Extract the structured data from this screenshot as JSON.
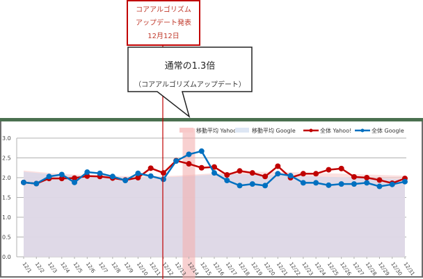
{
  "annotation": {
    "box_lines": [
      "コアアルゴリズム",
      "アップデート発表",
      "12月12日"
    ],
    "bubble_title": "通常の1.3倍",
    "bubble_subtitle": "（コアアルゴリズムアップデート）"
  },
  "legend": [
    {
      "label": "移動平均 Yahoo!",
      "color": "#f8c8c8",
      "kind": "area"
    },
    {
      "label": "移動平均 Google",
      "color": "#dde6f4",
      "kind": "area"
    },
    {
      "label": "全体 Yahoo!",
      "color": "#c00000",
      "kind": "line"
    },
    {
      "label": "全体 Google",
      "color": "#0070c0",
      "kind": "line"
    }
  ],
  "colors": {
    "yahoo": "#c00000",
    "google": "#0070c0",
    "ma_yahoo": "#f8cccc",
    "ma_google": "#dcd8e8",
    "highlight": "#f4b0b0",
    "event_line": "#c00000",
    "grid": "#b0b0b0"
  },
  "chart_data": {
    "type": "line",
    "title": "",
    "xlabel": "",
    "ylabel": "",
    "ylim": [
      0,
      3.0
    ],
    "yticks": [
      "0.0",
      "0.5",
      "1.0",
      "1.5",
      "2.0",
      "2.5",
      "3.0"
    ],
    "grid": true,
    "legend_position": "top",
    "categories": [
      "12/1",
      "12/2",
      "12/3",
      "12/4",
      "12/5",
      "12/6",
      "12/7",
      "12/8",
      "12/9",
      "12/10",
      "12/11",
      "12/12",
      "12/13",
      "12/14",
      "12/15",
      "12/16",
      "12/17",
      "12/18",
      "12/19",
      "12/20",
      "12/21",
      "12/22",
      "12/23",
      "12/24",
      "12/25",
      "12/26",
      "12/27",
      "12/28",
      "12/29",
      "12/30",
      "12/31"
    ],
    "series": [
      {
        "name": "全体 Yahoo!",
        "type": "line",
        "values": [
          1.88,
          1.85,
          1.98,
          1.98,
          1.99,
          2.04,
          2.03,
          1.99,
          1.94,
          2.0,
          2.24,
          2.12,
          2.43,
          2.35,
          2.25,
          2.27,
          2.07,
          2.17,
          2.12,
          2.03,
          2.29,
          2.0,
          2.1,
          2.1,
          2.2,
          2.23,
          2.02,
          2.0,
          1.94,
          1.86,
          1.98
        ]
      },
      {
        "name": "全体 Google",
        "type": "line",
        "values": [
          1.88,
          1.85,
          2.03,
          2.08,
          1.88,
          2.14,
          2.11,
          2.03,
          1.93,
          2.11,
          2.04,
          1.96,
          2.42,
          2.59,
          2.67,
          2.12,
          1.93,
          1.8,
          1.84,
          1.8,
          2.1,
          2.05,
          1.87,
          1.87,
          1.81,
          1.84,
          1.84,
          1.87,
          1.78,
          1.83,
          1.9
        ]
      },
      {
        "name": "移動平均 Yahoo!",
        "type": "area",
        "values": [
          2.18,
          2.15,
          2.12,
          2.1,
          2.08,
          2.07,
          2.06,
          2.05,
          2.04,
          2.04,
          2.04,
          2.04,
          2.05,
          2.07,
          2.09,
          2.11,
          2.13,
          2.14,
          2.15,
          2.15,
          2.15,
          2.14,
          2.13,
          2.12,
          2.11,
          2.1,
          2.09,
          2.08,
          2.07,
          2.06,
          2.05
        ]
      },
      {
        "name": "移動平均 Google",
        "type": "area",
        "values": [
          2.15,
          2.12,
          2.09,
          2.07,
          2.05,
          2.04,
          2.03,
          2.02,
          2.02,
          2.01,
          2.01,
          2.01,
          2.02,
          2.04,
          2.06,
          2.08,
          2.09,
          2.09,
          2.08,
          2.07,
          2.06,
          2.05,
          2.04,
          2.03,
          2.02,
          2.01,
          2.0,
          1.99,
          1.98,
          1.97,
          1.96
        ]
      }
    ],
    "annotations": [
      {
        "type": "vline",
        "x": "12/12",
        "label": "コアアルゴリズムアップデート発表 12月12日"
      },
      {
        "type": "highlight",
        "x": "12/14",
        "label": "通常の1.3倍（コアアルゴリズムアップデート）"
      }
    ]
  }
}
